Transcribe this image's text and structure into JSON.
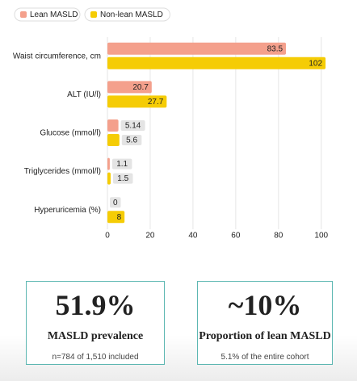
{
  "chart_data": {
    "type": "bar",
    "orientation": "horizontal",
    "categories": [
      "Waist circumference, cm",
      "ALT (IU/l)",
      "Glucose (mmol/l)",
      "Triglycerides (mmol/l)",
      "Hyperuricemia (%)"
    ],
    "series": [
      {
        "name": "Lean MASLD",
        "color": "#f4a08c",
        "values": [
          83.5,
          20.7,
          5.14,
          1.1,
          0
        ]
      },
      {
        "name": "Non-lean MASLD",
        "color": "#f5cc05",
        "values": [
          102,
          27.7,
          5.6,
          1.5,
          8
        ]
      }
    ],
    "xlim": [
      0,
      105
    ],
    "xticks": [
      0,
      20,
      40,
      60,
      80,
      100
    ],
    "grid": true,
    "legend": "top-left"
  },
  "cards": [
    {
      "value": "51.9%",
      "label": "MASLD prevalence",
      "note": "n=784 of 1,510 included"
    },
    {
      "value": "~10%",
      "label": "Proportion of lean MASLD",
      "note": "5.1% of the entire cohort"
    }
  ]
}
